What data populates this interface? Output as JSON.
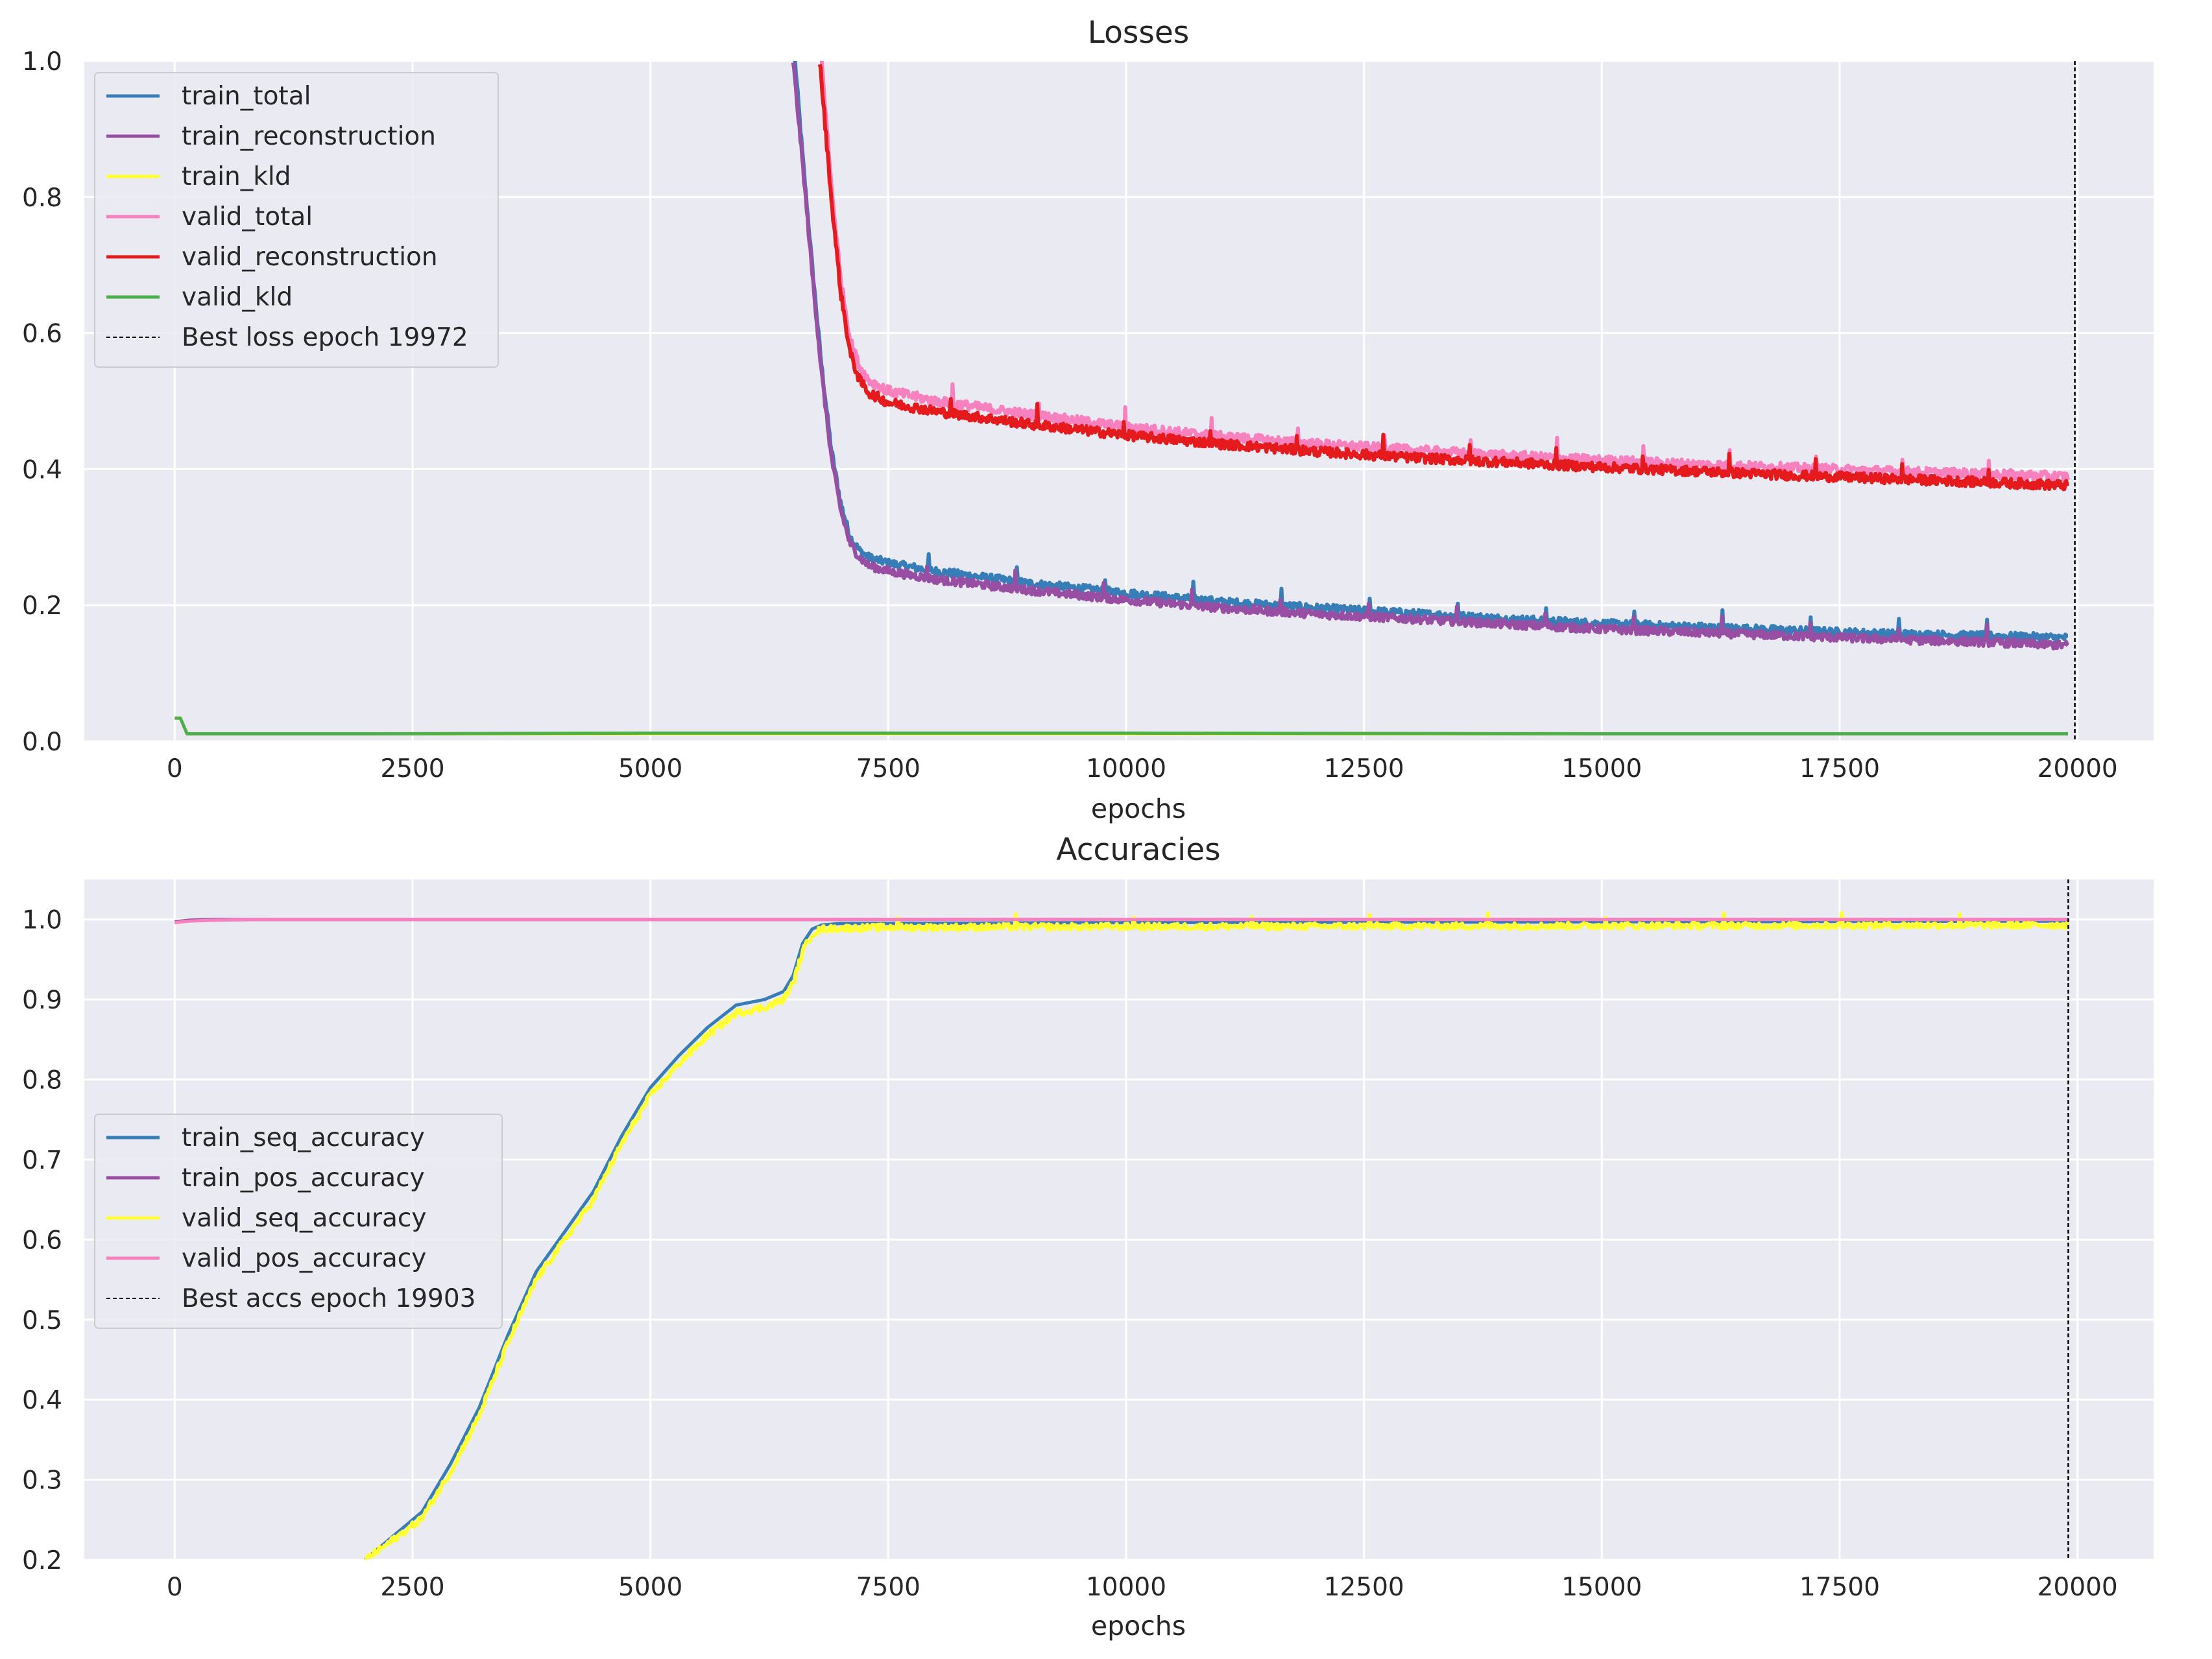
{
  "chart_data": [
    {
      "type": "line",
      "title": "Losses",
      "xlabel": "epochs",
      "ylabel": "",
      "xlim": [
        -950,
        20800
      ],
      "ylim": [
        0.0,
        1.0
      ],
      "xticks": [
        0,
        2500,
        5000,
        7500,
        10000,
        12500,
        15000,
        17500,
        20000
      ],
      "xtick_labels": [
        "0",
        "2500",
        "5000",
        "7500",
        "10000",
        "12500",
        "15000",
        "17500",
        "20000"
      ],
      "yticks": [
        0.0,
        0.2,
        0.4,
        0.6,
        0.8,
        1.0
      ],
      "ytick_labels": [
        "0.0",
        "0.2",
        "0.4",
        "0.6",
        "0.8",
        "1.0"
      ],
      "grid": true,
      "legend_position": "top-left",
      "vline": {
        "x": 19972,
        "label": "Best loss epoch 19972"
      },
      "series": [
        {
          "name": "train_total",
          "color": "#377eb8",
          "noise": 0.006,
          "x": [
            6520,
            6600,
            6700,
            6800,
            6900,
            7000,
            7100,
            7200,
            7300,
            7500,
            8000,
            9000,
            10000,
            11000,
            12000,
            13000,
            14000,
            15000,
            16000,
            17000,
            18000,
            19000,
            19900
          ],
          "y": [
            1.0,
            0.86,
            0.7,
            0.55,
            0.43,
            0.35,
            0.3,
            0.28,
            0.27,
            0.262,
            0.25,
            0.232,
            0.218,
            0.205,
            0.196,
            0.188,
            0.18,
            0.173,
            0.168,
            0.163,
            0.158,
            0.155,
            0.152
          ]
        },
        {
          "name": "train_reconstruction",
          "color": "#984ea3",
          "noise": 0.006,
          "x": [
            6500,
            6600,
            6700,
            6800,
            6900,
            7000,
            7100,
            7200,
            7300,
            7500,
            8000,
            9000,
            10000,
            11000,
            12000,
            13000,
            14000,
            15000,
            16000,
            17000,
            18000,
            19000,
            19900
          ],
          "y": [
            1.0,
            0.85,
            0.69,
            0.54,
            0.42,
            0.34,
            0.29,
            0.27,
            0.258,
            0.25,
            0.238,
            0.222,
            0.208,
            0.196,
            0.187,
            0.18,
            0.172,
            0.165,
            0.16,
            0.155,
            0.15,
            0.146,
            0.141
          ]
        },
        {
          "name": "train_kld",
          "color": "#ffff33",
          "noise": 0,
          "x": [
            0,
            60,
            130,
            2000,
            5000,
            10000,
            15000,
            19900
          ],
          "y": [
            0.034,
            0.034,
            0.011,
            0.011,
            0.011,
            0.011,
            0.011,
            0.011
          ]
        },
        {
          "name": "valid_total",
          "color": "#f781bf",
          "noise": 0.007,
          "x": [
            6800,
            6900,
            7000,
            7100,
            7200,
            7300,
            7500,
            8000,
            9000,
            10000,
            11000,
            12000,
            13000,
            14000,
            15000,
            16000,
            17000,
            18000,
            19000,
            19900
          ],
          "y": [
            1.0,
            0.82,
            0.68,
            0.59,
            0.55,
            0.53,
            0.515,
            0.5,
            0.48,
            0.462,
            0.448,
            0.437,
            0.428,
            0.42,
            0.413,
            0.407,
            0.402,
            0.397,
            0.393,
            0.389
          ]
        },
        {
          "name": "valid_reconstruction",
          "color": "#e41a1c",
          "noise": 0.007,
          "x": [
            6780,
            6900,
            7000,
            7100,
            7200,
            7300,
            7500,
            8000,
            9000,
            10000,
            11000,
            12000,
            13000,
            14000,
            15000,
            16000,
            17000,
            18000,
            19000,
            19900
          ],
          "y": [
            1.0,
            0.8,
            0.66,
            0.57,
            0.53,
            0.512,
            0.498,
            0.485,
            0.466,
            0.45,
            0.437,
            0.426,
            0.417,
            0.41,
            0.403,
            0.397,
            0.391,
            0.386,
            0.381,
            0.376
          ]
        },
        {
          "name": "valid_kld",
          "color": "#4daf4a",
          "noise": 0,
          "x": [
            0,
            60,
            130,
            2000,
            5000,
            10000,
            15000,
            19900
          ],
          "y": [
            0.034,
            0.034,
            0.011,
            0.011,
            0.012,
            0.012,
            0.011,
            0.011
          ]
        }
      ]
    },
    {
      "type": "line",
      "title": "Accuracies",
      "xlabel": "epochs",
      "ylabel": "",
      "xlim": [
        -950,
        20800
      ],
      "ylim": [
        0.2,
        1.05
      ],
      "xticks": [
        0,
        2500,
        5000,
        7500,
        10000,
        12500,
        15000,
        17500,
        20000
      ],
      "xtick_labels": [
        "0",
        "2500",
        "5000",
        "7500",
        "10000",
        "12500",
        "15000",
        "17500",
        "20000"
      ],
      "yticks": [
        0.2,
        0.3,
        0.4,
        0.5,
        0.6,
        0.7,
        0.8,
        0.9,
        1.0
      ],
      "ytick_labels": [
        "0.2",
        "0.3",
        "0.4",
        "0.5",
        "0.6",
        "0.7",
        "0.8",
        "0.9",
        "1.0"
      ],
      "grid": true,
      "legend_position": "center-left",
      "vline": {
        "x": 19903,
        "label": "Best accs epoch 19903"
      },
      "series": [
        {
          "name": "train_seq_accuracy",
          "color": "#377eb8",
          "noise": 0,
          "x": [
            2000,
            2300,
            2600,
            2900,
            3200,
            3500,
            3800,
            4100,
            4400,
            4700,
            5000,
            5300,
            5600,
            5900,
            6200,
            6400,
            6500,
            6600,
            6700,
            6800,
            7000,
            7500,
            10000,
            15000,
            19900
          ],
          "y": [
            0.2,
            0.23,
            0.26,
            0.32,
            0.39,
            0.48,
            0.56,
            0.61,
            0.66,
            0.73,
            0.79,
            0.83,
            0.865,
            0.893,
            0.9,
            0.91,
            0.93,
            0.97,
            0.988,
            0.993,
            0.995,
            0.995,
            0.996,
            0.997,
            0.998
          ]
        },
        {
          "name": "train_pos_accuracy",
          "color": "#984ea3",
          "noise": 0,
          "x": [
            0,
            150,
            400,
            1000,
            2500,
            5000,
            10000,
            15000,
            19900
          ],
          "y": [
            0.997,
            0.999,
            1.0,
            1.0,
            1.0,
            1.0,
            1.0,
            1.0,
            1.0
          ]
        },
        {
          "name": "valid_seq_accuracy",
          "color": "#ffff33",
          "noise": 0.004,
          "x": [
            2000,
            2300,
            2600,
            2900,
            3200,
            3500,
            3800,
            4100,
            4400,
            4700,
            5000,
            5300,
            5600,
            5900,
            6200,
            6400,
            6500,
            6600,
            6700,
            6800,
            7000,
            7500,
            10000,
            15000,
            19900
          ],
          "y": [
            0.2,
            0.225,
            0.252,
            0.31,
            0.38,
            0.47,
            0.55,
            0.6,
            0.65,
            0.72,
            0.78,
            0.82,
            0.855,
            0.883,
            0.89,
            0.9,
            0.92,
            0.96,
            0.982,
            0.988,
            0.989,
            0.99,
            0.991,
            0.992,
            0.993
          ]
        },
        {
          "name": "valid_pos_accuracy",
          "color": "#f781bf",
          "noise": 0,
          "x": [
            0,
            150,
            400,
            1000,
            2500,
            5000,
            10000,
            15000,
            19900
          ],
          "y": [
            0.996,
            0.998,
            0.999,
            1.0,
            1.0,
            1.0,
            1.0,
            1.0,
            1.0
          ]
        }
      ]
    }
  ]
}
